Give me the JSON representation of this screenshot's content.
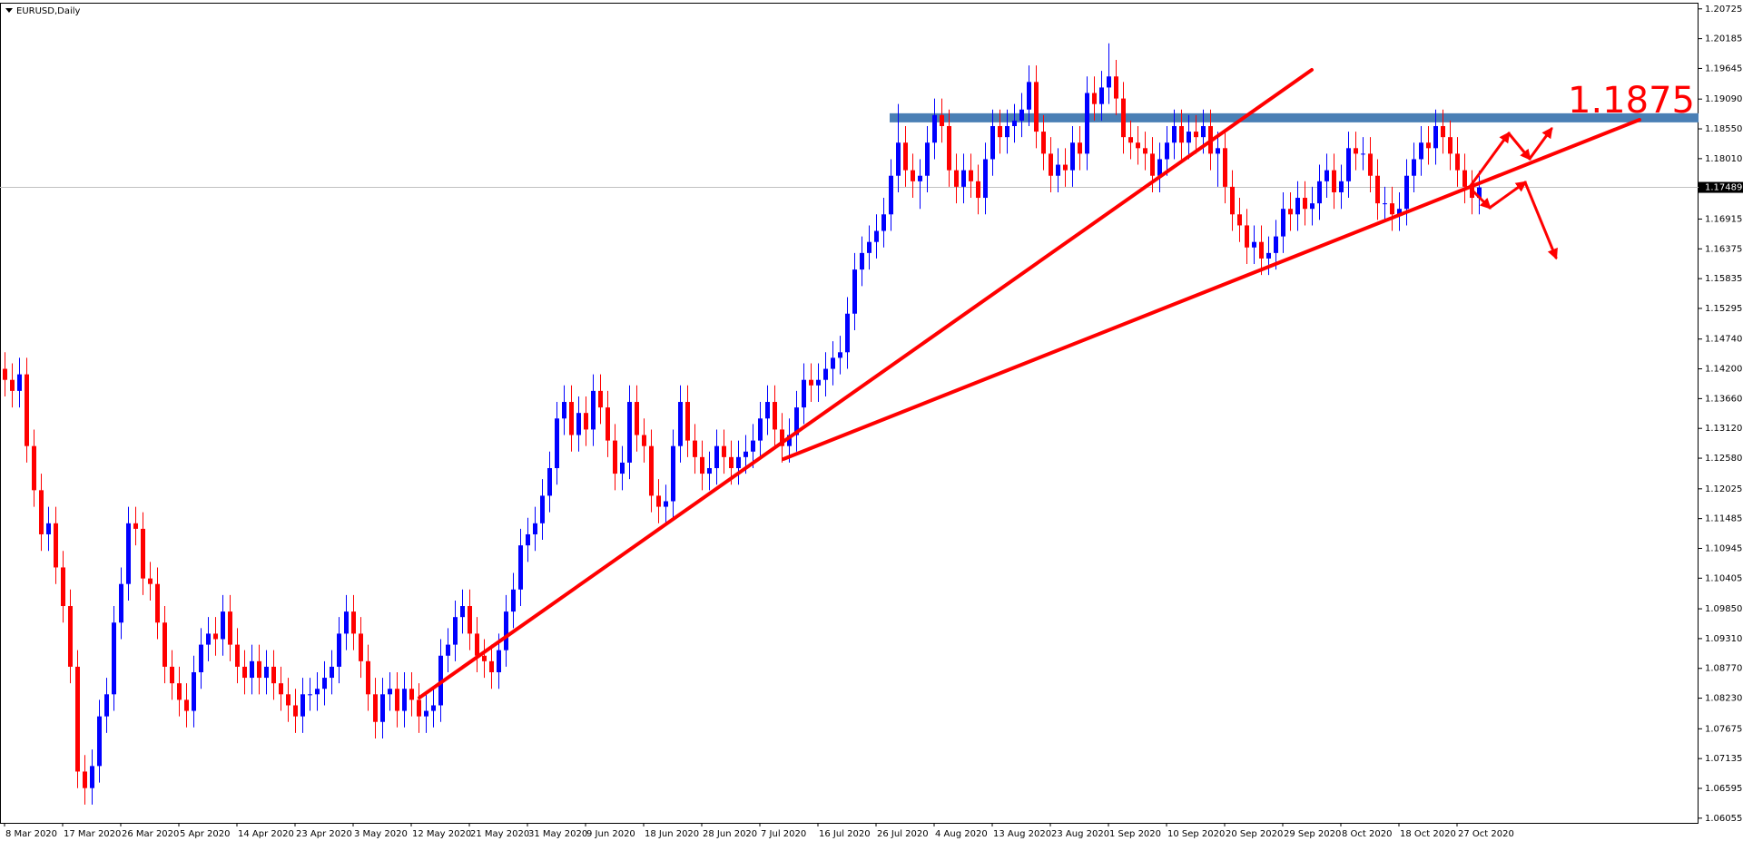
{
  "chart_data": {
    "type": "candlestick",
    "title": "EURUSD,Daily",
    "categories": [
      "8 Mar 2020",
      null,
      null,
      null,
      null,
      null,
      null,
      null,
      "17 Mar 2020",
      null,
      null,
      null,
      null,
      null,
      null,
      null,
      "26 Mar 2020",
      null,
      null,
      null,
      null,
      null,
      null,
      null,
      "5 Apr 2020",
      null,
      null,
      null,
      null,
      null,
      null,
      null,
      "14 Apr 2020",
      null,
      null,
      null,
      null,
      null,
      null,
      null,
      "23 Apr 2020",
      null,
      null,
      null,
      null,
      null,
      null,
      null,
      "3 May 2020",
      null,
      null,
      null,
      null,
      null,
      null,
      null,
      "12 May 2020",
      null,
      null,
      null,
      null,
      null,
      null,
      null,
      "21 May 2020",
      null,
      null,
      null,
      null,
      null,
      null,
      null,
      "31 May 2020",
      null,
      null,
      null,
      null,
      null,
      null,
      null,
      "9 Jun 2020",
      null,
      null,
      null,
      null,
      null,
      null,
      null,
      "18 Jun 2020",
      null,
      null,
      null,
      null,
      null,
      null,
      null,
      "28 Jun 2020",
      null,
      null,
      null,
      null,
      null,
      null,
      null,
      "7 Jul 2020",
      null,
      null,
      null,
      null,
      null,
      null,
      null,
      "16 Jul 2020",
      null,
      null,
      null,
      null,
      null,
      null,
      null,
      "26 Jul 2020",
      null,
      null,
      null,
      null,
      null,
      null,
      null,
      "4 Aug 2020",
      null,
      null,
      null,
      null,
      null,
      null,
      null,
      "13 Aug 2020",
      null,
      null,
      null,
      null,
      null,
      null,
      null,
      "23 Aug 2020",
      null,
      null,
      null,
      null,
      null,
      null,
      null,
      "1 Sep 2020",
      null,
      null,
      null,
      null,
      null,
      null,
      null,
      "10 Sep 2020",
      null,
      null,
      null,
      null,
      null,
      null,
      null,
      "20 Sep 2020",
      null,
      null,
      null,
      null,
      null,
      null,
      null,
      "29 Sep 2020",
      null,
      null,
      null,
      null,
      null,
      null,
      null,
      "8 Oct 2020",
      null,
      null,
      null,
      null,
      null,
      null,
      null,
      "18 Oct 2020",
      null,
      null,
      null,
      null,
      null,
      null,
      null,
      "27 Oct 2020",
      null,
      null,
      null
    ],
    "open": [
      1.142,
      1.14,
      1.138,
      1.141,
      1.128,
      1.12,
      1.112,
      1.114,
      1.106,
      1.099,
      1.088,
      1.069,
      1.066,
      1.07,
      1.079,
      1.083,
      1.096,
      1.103,
      1.114,
      1.113,
      1.104,
      1.103,
      1.096,
      1.088,
      1.085,
      1.082,
      1.08,
      1.087,
      1.092,
      1.094,
      1.093,
      1.098,
      1.092,
      1.088,
      1.086,
      1.089,
      1.086,
      1.088,
      1.085,
      1.083,
      1.081,
      1.079,
      1.083,
      1.083,
      1.084,
      1.086,
      1.088,
      1.094,
      1.098,
      1.094,
      1.089,
      1.083,
      1.078,
      1.083,
      1.084,
      1.08,
      1.084,
      1.082,
      1.079,
      1.08,
      1.081,
      1.09,
      1.092,
      1.097,
      1.099,
      1.094,
      1.09,
      1.089,
      1.087,
      1.091,
      1.098,
      1.102,
      1.11,
      1.112,
      1.114,
      1.119,
      1.124,
      1.133,
      1.136,
      1.13,
      1.134,
      1.131,
      1.138,
      1.135,
      1.129,
      1.123,
      1.125,
      1.136,
      1.13,
      1.128,
      1.119,
      1.117,
      1.118,
      1.128,
      1.136,
      1.129,
      1.126,
      1.123,
      1.124,
      1.128,
      1.126,
      1.124,
      1.126,
      1.127,
      1.129,
      1.133,
      1.136,
      1.131,
      1.128,
      1.13,
      1.135,
      1.14,
      1.139,
      1.14,
      1.142,
      1.144,
      1.145,
      1.152,
      1.16,
      1.163,
      1.165,
      1.167,
      1.17,
      1.177,
      1.183,
      1.178,
      1.176,
      1.177,
      1.183,
      1.188,
      1.186,
      1.178,
      1.175,
      1.178,
      1.176,
      1.173,
      1.18,
      1.186,
      1.184,
      1.186,
      1.187,
      1.189,
      1.194,
      1.185,
      1.181,
      1.177,
      1.179,
      1.178,
      1.183,
      1.181,
      1.192,
      1.19,
      1.193,
      1.195,
      1.191,
      1.184,
      1.183,
      1.182,
      1.181,
      1.177,
      1.18,
      1.183,
      1.186,
      1.183,
      1.185,
      1.184,
      1.186,
      1.181,
      1.182,
      1.175,
      1.17,
      1.168,
      1.164,
      1.165,
      1.162,
      1.163,
      1.166,
      1.171,
      1.17,
      1.173,
      1.171,
      1.172,
      1.176,
      1.178,
      1.174,
      1.176,
      1.182,
      1.181,
      1.181,
      1.177,
      1.172,
      1.172,
      1.17,
      1.171,
      1.177,
      1.18,
      1.183,
      1.182,
      1.186,
      1.184,
      1.181,
      1.178,
      1.175,
      1.173
    ],
    "high": [
      1.145,
      1.143,
      1.144,
      1.144,
      1.131,
      1.123,
      1.117,
      1.117,
      1.109,
      1.102,
      1.091,
      1.072,
      1.073,
      1.082,
      1.086,
      1.099,
      1.106,
      1.117,
      1.117,
      1.116,
      1.107,
      1.106,
      1.099,
      1.091,
      1.088,
      1.085,
      1.09,
      1.095,
      1.097,
      1.097,
      1.101,
      1.101,
      1.095,
      1.091,
      1.092,
      1.092,
      1.091,
      1.091,
      1.088,
      1.086,
      1.084,
      1.086,
      1.086,
      1.087,
      1.089,
      1.091,
      1.097,
      1.101,
      1.101,
      1.097,
      1.092,
      1.086,
      1.086,
      1.087,
      1.087,
      1.087,
      1.087,
      1.085,
      1.083,
      1.084,
      1.093,
      1.095,
      1.1,
      1.102,
      1.102,
      1.097,
      1.093,
      1.092,
      1.094,
      1.101,
      1.105,
      1.113,
      1.115,
      1.117,
      1.122,
      1.127,
      1.136,
      1.139,
      1.139,
      1.137,
      1.137,
      1.141,
      1.141,
      1.138,
      1.132,
      1.128,
      1.139,
      1.139,
      1.133,
      1.131,
      1.122,
      1.121,
      1.131,
      1.139,
      1.139,
      1.132,
      1.129,
      1.127,
      1.131,
      1.131,
      1.129,
      1.129,
      1.13,
      1.132,
      1.136,
      1.139,
      1.139,
      1.134,
      1.133,
      1.138,
      1.143,
      1.143,
      1.143,
      1.145,
      1.147,
      1.148,
      1.155,
      1.163,
      1.166,
      1.168,
      1.17,
      1.173,
      1.18,
      1.19,
      1.186,
      1.181,
      1.18,
      1.186,
      1.191,
      1.191,
      1.189,
      1.181,
      1.181,
      1.181,
      1.179,
      1.183,
      1.189,
      1.189,
      1.189,
      1.19,
      1.192,
      1.197,
      1.197,
      1.188,
      1.184,
      1.182,
      1.182,
      1.186,
      1.186,
      1.195,
      1.195,
      1.196,
      1.201,
      1.198,
      1.194,
      1.187,
      1.186,
      1.185,
      1.184,
      1.183,
      1.186,
      1.189,
      1.189,
      1.188,
      1.188,
      1.189,
      1.189,
      1.185,
      1.185,
      1.178,
      1.173,
      1.171,
      1.168,
      1.168,
      1.166,
      1.169,
      1.174,
      1.174,
      1.176,
      1.176,
      1.175,
      1.179,
      1.181,
      1.181,
      1.179,
      1.185,
      1.185,
      1.184,
      1.184,
      1.18,
      1.175,
      1.175,
      1.174,
      1.18,
      1.183,
      1.186,
      1.186,
      1.189,
      1.189,
      1.187,
      1.184,
      1.181,
      1.178,
      1.1779
    ],
    "low": [
      1.137,
      1.135,
      1.135,
      1.125,
      1.117,
      1.109,
      1.109,
      1.103,
      1.096,
      1.085,
      1.066,
      1.063,
      1.063,
      1.067,
      1.076,
      1.08,
      1.093,
      1.1,
      1.11,
      1.101,
      1.1,
      1.093,
      1.085,
      1.082,
      1.079,
      1.077,
      1.077,
      1.084,
      1.089,
      1.09,
      1.09,
      1.089,
      1.085,
      1.083,
      1.083,
      1.083,
      1.083,
      1.082,
      1.08,
      1.078,
      1.076,
      1.076,
      1.08,
      1.08,
      1.081,
      1.083,
      1.085,
      1.091,
      1.091,
      1.086,
      1.08,
      1.075,
      1.075,
      1.08,
      1.077,
      1.077,
      1.079,
      1.076,
      1.076,
      1.077,
      1.078,
      1.087,
      1.089,
      1.094,
      1.091,
      1.087,
      1.086,
      1.084,
      1.084,
      1.088,
      1.095,
      1.099,
      1.107,
      1.109,
      1.111,
      1.116,
      1.121,
      1.13,
      1.127,
      1.127,
      1.128,
      1.128,
      1.132,
      1.126,
      1.12,
      1.12,
      1.122,
      1.127,
      1.125,
      1.116,
      1.114,
      1.114,
      1.115,
      1.125,
      1.126,
      1.123,
      1.12,
      1.12,
      1.121,
      1.123,
      1.121,
      1.121,
      1.123,
      1.124,
      1.126,
      1.13,
      1.128,
      1.125,
      1.125,
      1.127,
      1.132,
      1.136,
      1.136,
      1.137,
      1.139,
      1.141,
      1.142,
      1.149,
      1.157,
      1.16,
      1.162,
      1.164,
      1.167,
      1.174,
      1.175,
      1.173,
      1.171,
      1.174,
      1.18,
      1.183,
      1.175,
      1.172,
      1.172,
      1.173,
      1.17,
      1.17,
      1.177,
      1.181,
      1.181,
      1.183,
      1.184,
      1.186,
      1.182,
      1.178,
      1.174,
      1.174,
      1.175,
      1.175,
      1.178,
      1.178,
      1.187,
      1.187,
      1.19,
      1.188,
      1.181,
      1.18,
      1.179,
      1.178,
      1.174,
      1.174,
      1.177,
      1.18,
      1.18,
      1.18,
      1.181,
      1.181,
      1.178,
      1.175,
      1.172,
      1.167,
      1.165,
      1.161,
      1.161,
      1.159,
      1.159,
      1.16,
      1.163,
      1.167,
      1.167,
      1.168,
      1.168,
      1.169,
      1.173,
      1.171,
      1.171,
      1.173,
      1.178,
      1.178,
      1.174,
      1.169,
      1.169,
      1.167,
      1.167,
      1.168,
      1.174,
      1.177,
      1.179,
      1.179,
      1.181,
      1.178,
      1.175,
      1.172,
      1.17,
      1.17
    ],
    "close": [
      1.14,
      1.138,
      1.141,
      1.128,
      1.12,
      1.112,
      1.114,
      1.106,
      1.099,
      1.088,
      1.069,
      1.066,
      1.07,
      1.079,
      1.083,
      1.096,
      1.103,
      1.114,
      1.113,
      1.104,
      1.103,
      1.096,
      1.088,
      1.085,
      1.082,
      1.08,
      1.087,
      1.092,
      1.094,
      1.093,
      1.098,
      1.092,
      1.088,
      1.086,
      1.089,
      1.086,
      1.088,
      1.085,
      1.083,
      1.081,
      1.079,
      1.083,
      1.083,
      1.084,
      1.086,
      1.088,
      1.094,
      1.098,
      1.094,
      1.089,
      1.083,
      1.078,
      1.083,
      1.084,
      1.08,
      1.084,
      1.082,
      1.079,
      1.08,
      1.081,
      1.09,
      1.092,
      1.097,
      1.099,
      1.094,
      1.09,
      1.089,
      1.087,
      1.091,
      1.098,
      1.102,
      1.11,
      1.112,
      1.114,
      1.119,
      1.124,
      1.133,
      1.136,
      1.13,
      1.134,
      1.131,
      1.138,
      1.135,
      1.129,
      1.123,
      1.125,
      1.136,
      1.13,
      1.128,
      1.119,
      1.117,
      1.118,
      1.128,
      1.136,
      1.129,
      1.126,
      1.123,
      1.124,
      1.128,
      1.126,
      1.124,
      1.126,
      1.127,
      1.129,
      1.133,
      1.136,
      1.131,
      1.128,
      1.13,
      1.135,
      1.14,
      1.139,
      1.14,
      1.142,
      1.144,
      1.145,
      1.152,
      1.16,
      1.163,
      1.165,
      1.167,
      1.17,
      1.177,
      1.183,
      1.178,
      1.176,
      1.177,
      1.183,
      1.188,
      1.186,
      1.178,
      1.175,
      1.178,
      1.176,
      1.173,
      1.18,
      1.186,
      1.184,
      1.186,
      1.187,
      1.189,
      1.194,
      1.185,
      1.181,
      1.177,
      1.179,
      1.178,
      1.183,
      1.181,
      1.192,
      1.19,
      1.193,
      1.195,
      1.191,
      1.184,
      1.183,
      1.182,
      1.181,
      1.177,
      1.18,
      1.183,
      1.186,
      1.183,
      1.185,
      1.184,
      1.186,
      1.181,
      1.182,
      1.175,
      1.17,
      1.168,
      1.164,
      1.165,
      1.162,
      1.163,
      1.166,
      1.171,
      1.17,
      1.173,
      1.171,
      1.172,
      1.176,
      1.178,
      1.174,
      1.176,
      1.182,
      1.181,
      1.181,
      1.177,
      1.172,
      1.172,
      1.17,
      1.171,
      1.177,
      1.18,
      1.183,
      1.182,
      1.186,
      1.184,
      1.181,
      1.178,
      1.175,
      1.173,
      1.17489
    ],
    "up_color": "#0000ff",
    "down_color": "#ff0000",
    "ylim": [
      1.0597,
      1.2082
    ],
    "yticks": [
      1.20725,
      1.20185,
      1.19645,
      {
        "value": 1.1909,
        "label": "1.19090"
      },
      {
        "value": 1.1855,
        "label": "1.18550"
      },
      {
        "value": 1.1801,
        "label": "1.18010"
      },
      1.16915,
      1.16375,
      1.15835,
      1.15295,
      {
        "value": 1.1474,
        "label": "1.14740"
      },
      {
        "value": 1.142,
        "label": "1.14200"
      },
      {
        "value": 1.1366,
        "label": "1.13660"
      },
      {
        "value": 1.1312,
        "label": "1.13120"
      },
      {
        "value": 1.1258,
        "label": "1.12580"
      },
      1.12025,
      1.11485,
      1.10945,
      1.10405,
      {
        "value": 1.0985,
        "label": "1.09850"
      },
      {
        "value": 1.0931,
        "label": "1.09310"
      },
      {
        "value": 1.0877,
        "label": "1.08770"
      },
      {
        "value": 1.0823,
        "label": "1.08230"
      },
      1.07675,
      1.07135,
      1.06595,
      1.06055
    ],
    "last_price": 1.17489,
    "resistance": 1.1875,
    "grid": false
  }
}
